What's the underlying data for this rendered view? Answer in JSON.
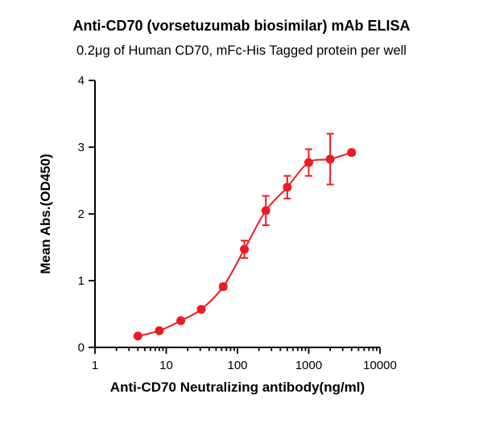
{
  "chart_data": {
    "type": "scatter",
    "title": "Anti-CD70 (vorsetuzumab biosimilar) mAb ELISA",
    "subtitle": "0.2μg of Human CD70, mFc-His Tagged protein per well",
    "xlabel": "Anti-CD70 Neutralizing antibody(ng/ml)",
    "ylabel": "Mean Abs.(OD450)",
    "x_scale": "log",
    "xlim": [
      1,
      10000
    ],
    "ylim": [
      0,
      4
    ],
    "x_tick_values": [
      1,
      10,
      100,
      1000,
      10000
    ],
    "x_tick_labels": [
      "1",
      "10",
      "100",
      "1000",
      "10000"
    ],
    "y_tick_values": [
      0,
      1,
      2,
      3,
      4
    ],
    "y_tick_labels": [
      "0",
      "1",
      "2",
      "3",
      "4"
    ],
    "grid": false,
    "legend": "none",
    "series": [
      {
        "name": "Anti-CD70 mAb",
        "color": "#ec1b23",
        "x": [
          4,
          8,
          16,
          31,
          63,
          125,
          250,
          500,
          1000,
          2000,
          4000
        ],
        "y": [
          0.17,
          0.25,
          0.4,
          0.57,
          0.91,
          1.47,
          2.05,
          2.4,
          2.77,
          2.82,
          2.92
        ],
        "yerr": [
          0.02,
          0.02,
          0.03,
          0.03,
          0.04,
          0.13,
          0.22,
          0.17,
          0.2,
          0.38,
          0.04
        ]
      }
    ]
  }
}
